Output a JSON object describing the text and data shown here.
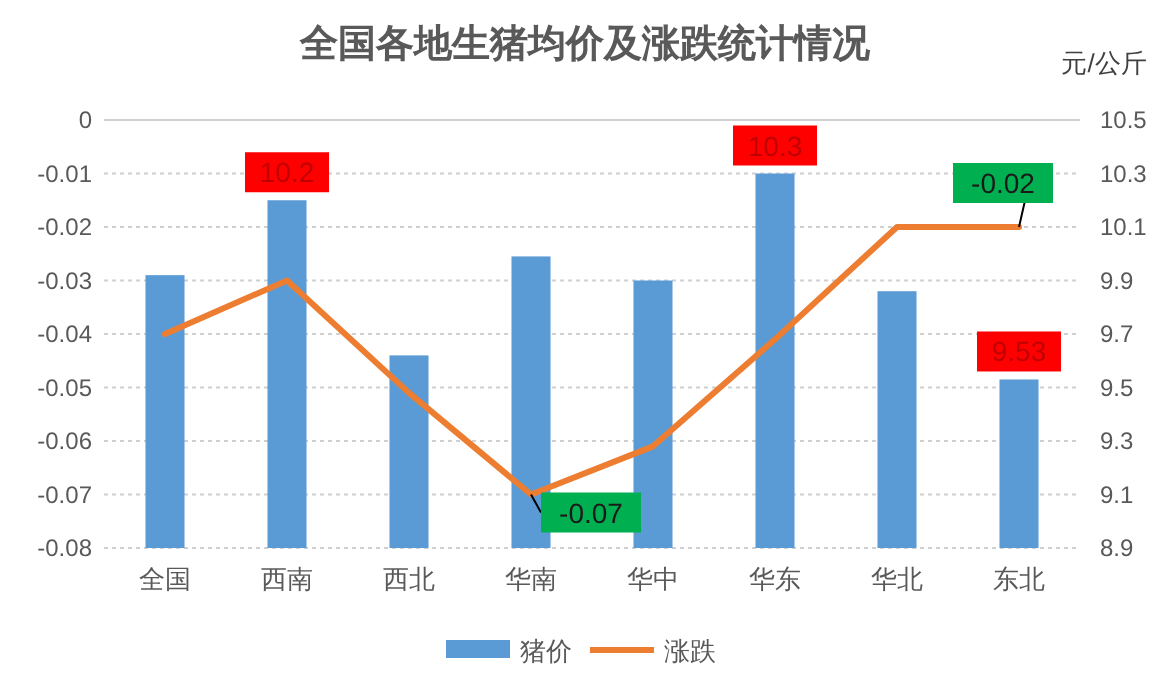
{
  "chart_data": {
    "type": "bar",
    "title": "全国各地生猪均价及涨跌统计情况",
    "y2label": "元/公斤",
    "categories": [
      "全国",
      "西南",
      "西北",
      "华南",
      "华中",
      "华东",
      "华北",
      "东北"
    ],
    "series": [
      {
        "name": "猪价",
        "axis": "y2",
        "color": "#5b9bd5",
        "values": [
          9.92,
          10.2,
          9.62,
          9.99,
          9.9,
          10.3,
          9.86,
          9.53
        ],
        "value_labels": [
          null,
          "10.2",
          null,
          null,
          null,
          "10.3",
          null,
          "9.53"
        ]
      },
      {
        "name": "涨跌",
        "type": "line",
        "color": "#ed7d31",
        "values": [
          -0.04,
          -0.03,
          -0.051,
          -0.07,
          -0.061,
          -0.041,
          -0.02,
          -0.02
        ],
        "value_labels": [
          null,
          null,
          null,
          "-0.07",
          null,
          null,
          null,
          "-0.02"
        ]
      }
    ],
    "ylim": [
      -0.08,
      0
    ],
    "yticks": [
      -0.08,
      -0.07,
      -0.06,
      -0.05,
      -0.04,
      -0.03,
      -0.02,
      -0.01,
      0
    ],
    "y2lim": [
      8.9,
      10.5
    ],
    "y2ticks": [
      {
        "value": 8.9,
        "label": "8.9"
      },
      {
        "value": 9.1,
        "label": "9.1"
      },
      {
        "value": 9.3,
        "label": "9.3"
      },
      {
        "value": 9.5,
        "label": "9.5"
      },
      {
        "value": 9.7,
        "label": "9.7"
      },
      {
        "value": 9.9,
        "label": "9.9"
      },
      {
        "value": 10.1,
        "label": "10.1"
      },
      {
        "value": 10.3,
        "label": "10.3"
      },
      {
        "value": 10.5,
        "label": "10.5"
      }
    ],
    "grid": "y",
    "legend": "bottom"
  }
}
